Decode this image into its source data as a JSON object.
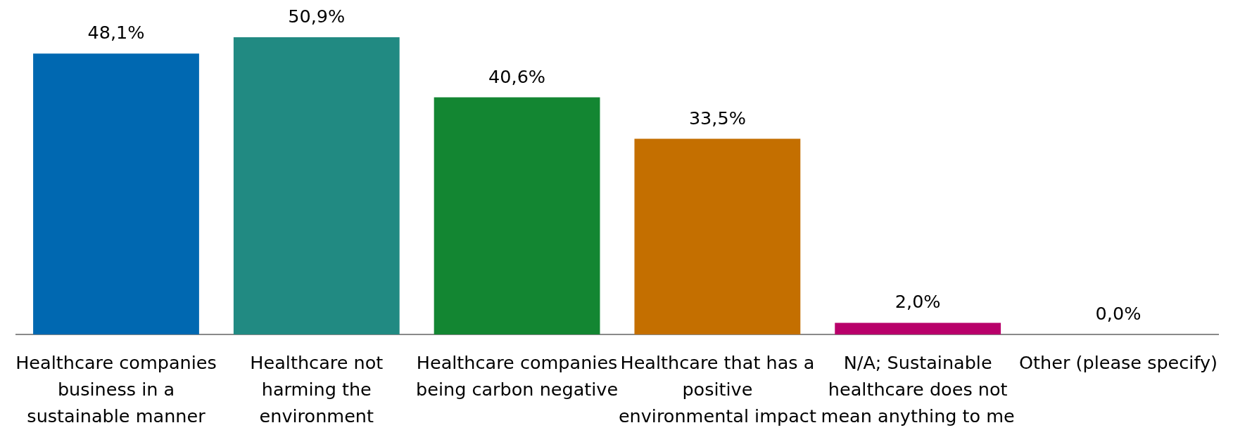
{
  "chart_data": {
    "type": "bar",
    "categories": [
      "Healthcare companies business in a sustainable manner",
      "Healthcare not harming the environment",
      "Healthcare companies being carbon negative",
      "Healthcare that has a positive environmental impact",
      "N/A; Sustainable healthcare does not mean anything to me",
      "Other (please specify)"
    ],
    "values": [
      48.1,
      50.9,
      40.6,
      33.5,
      2.0,
      0.0
    ],
    "colors": [
      "#0068b1",
      "#218a82",
      "#138632",
      "#c46f00",
      "#b8006a",
      "#7f7f7f"
    ],
    "value_labels": [
      "48,1%",
      "50,9%",
      "40,6%",
      "33,5%",
      "2,0%",
      "0,0%"
    ],
    "tick_labels": "x"
  }
}
